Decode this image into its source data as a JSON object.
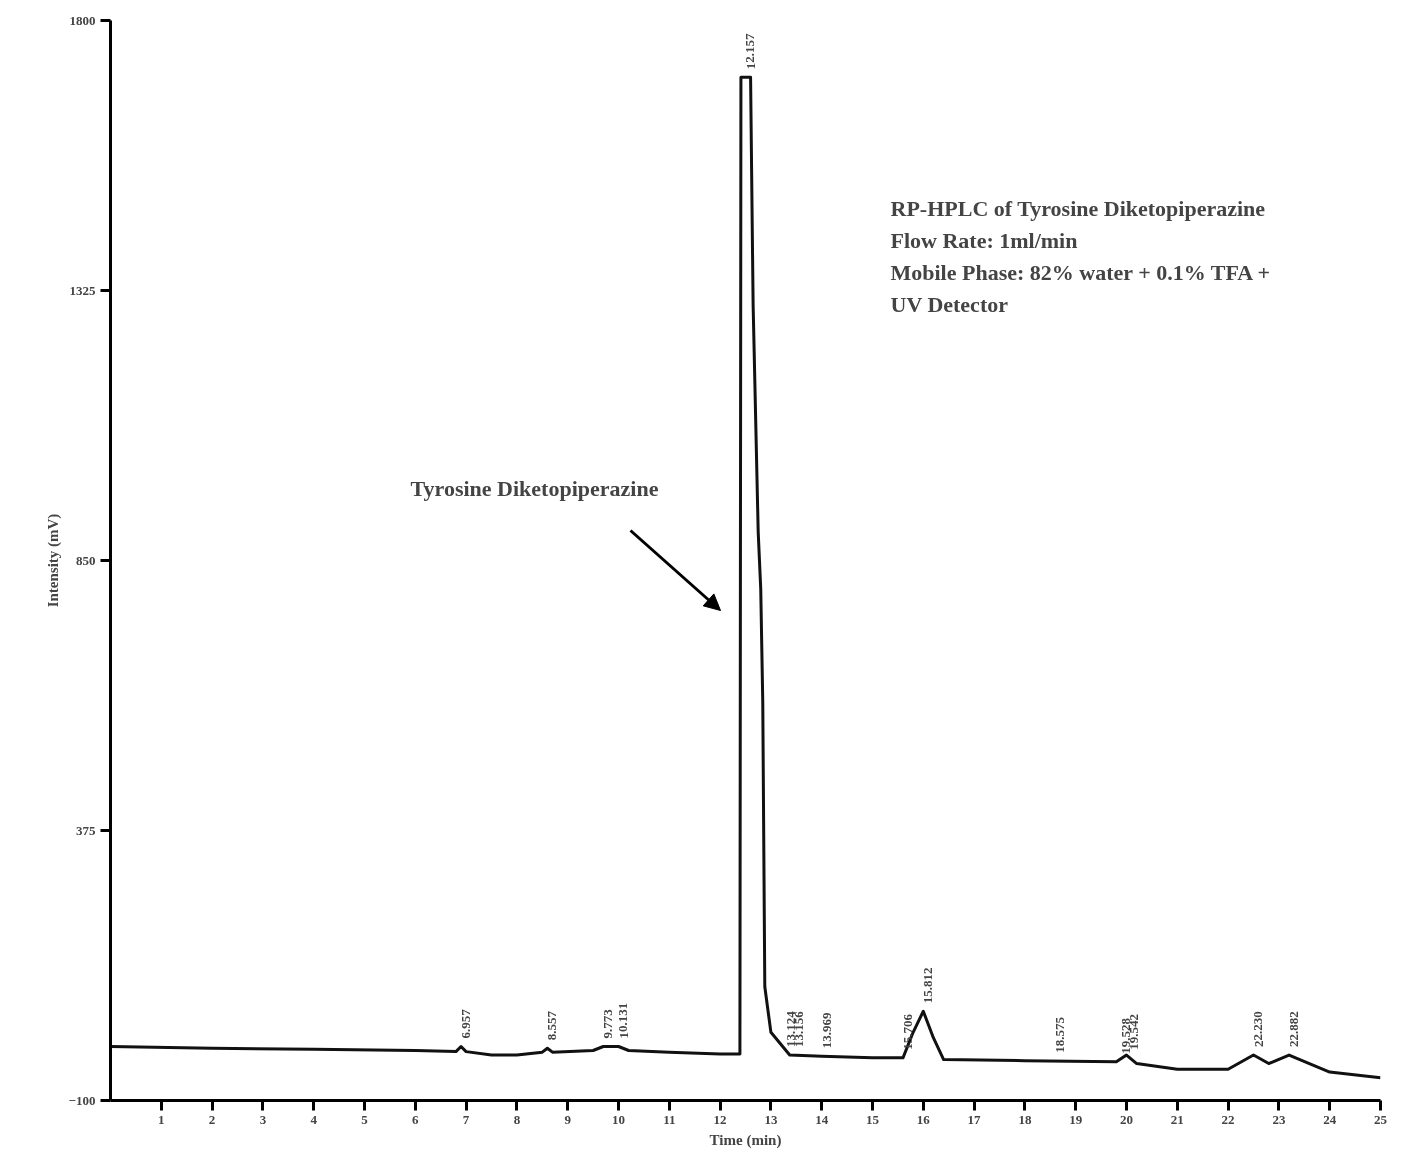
{
  "chart_data": {
    "type": "line",
    "xlabel": "Time (min)",
    "ylabel": "Intensity (mV)",
    "xlim": [
      0,
      25
    ],
    "ylim": [
      -100,
      1800
    ],
    "xticks": [
      1,
      2,
      3,
      4,
      5,
      6,
      7,
      8,
      9,
      10,
      11,
      12,
      13,
      14,
      15,
      16,
      17,
      18,
      19,
      20,
      21,
      22,
      23,
      24,
      25
    ],
    "yticks": [
      -100,
      375,
      850,
      1325,
      1800
    ],
    "grid": false,
    "marker": "none",
    "line_style": "solid",
    "series": [
      {
        "color": "#111111",
        "x": [
          0,
          2,
          4,
          6,
          6.8,
          6.9,
          7.0,
          7.5,
          8.0,
          8.5,
          8.6,
          8.7,
          9.5,
          9.7,
          10.0,
          10.2,
          11,
          12,
          12.39,
          12.41,
          12.6,
          12.65,
          12.75,
          12.8,
          12.84,
          12.88,
          13.0,
          13.37,
          14,
          15,
          15.6,
          15.8,
          16.0,
          16.2,
          16.4,
          18,
          19.8,
          20.0,
          20.2,
          21,
          22,
          22.5,
          22.8,
          23.2,
          23.6,
          24,
          25
        ],
        "values": [
          -5,
          -8,
          -10,
          -12,
          -14,
          -5,
          -14,
          -20,
          -20,
          -15,
          -8,
          -15,
          -12,
          -5,
          -5,
          -12,
          -15,
          -18,
          -18,
          1700,
          1700,
          1300,
          900,
          800,
          600,
          100,
          20,
          -20,
          -22,
          -25,
          -25,
          20,
          57,
          10,
          -28,
          -30,
          -32,
          -20,
          -35,
          -45,
          -45,
          -20,
          -35,
          -20,
          -35,
          -50,
          -60
        ]
      }
    ],
    "annotations": [
      "RP-HPLC of Tyrosine Diketopiperazine",
      "Flow Rate: 1ml/min",
      "Mobile Phase: 82% water + 0.1% TFA +",
      "UV Detector",
      "Tyrosine Diketopiperazine",
      {
        "text": "6.957",
        "x": 6.9,
        "y": -5
      },
      {
        "text": "8.557",
        "x": 8.6,
        "y": -8
      },
      {
        "text": "9.773",
        "x": 9.7,
        "y": -5
      },
      {
        "text": "10.131",
        "x": 10.0,
        "y": -5
      },
      {
        "text": "12.157",
        "x": 12.5,
        "y": 1700
      },
      {
        "text": "13.124",
        "x": 13.3,
        "y": -20
      },
      {
        "text": "13.156",
        "x": 13.45,
        "y": -20
      },
      {
        "text": "13.969",
        "x": 14.0,
        "y": -22
      },
      {
        "text": "15.706",
        "x": 15.6,
        "y": -25
      },
      {
        "text": "15.812",
        "x": 16.0,
        "y": 57
      },
      {
        "text": "18.575",
        "x": 18.6,
        "y": -30
      },
      {
        "text": "19.528",
        "x": 19.9,
        "y": -32
      },
      {
        "text": "19.542",
        "x": 20.05,
        "y": -25
      },
      {
        "text": "22.230",
        "x": 22.5,
        "y": -20
      },
      {
        "text": "22.882",
        "x": 23.2,
        "y": -20
      }
    ]
  }
}
